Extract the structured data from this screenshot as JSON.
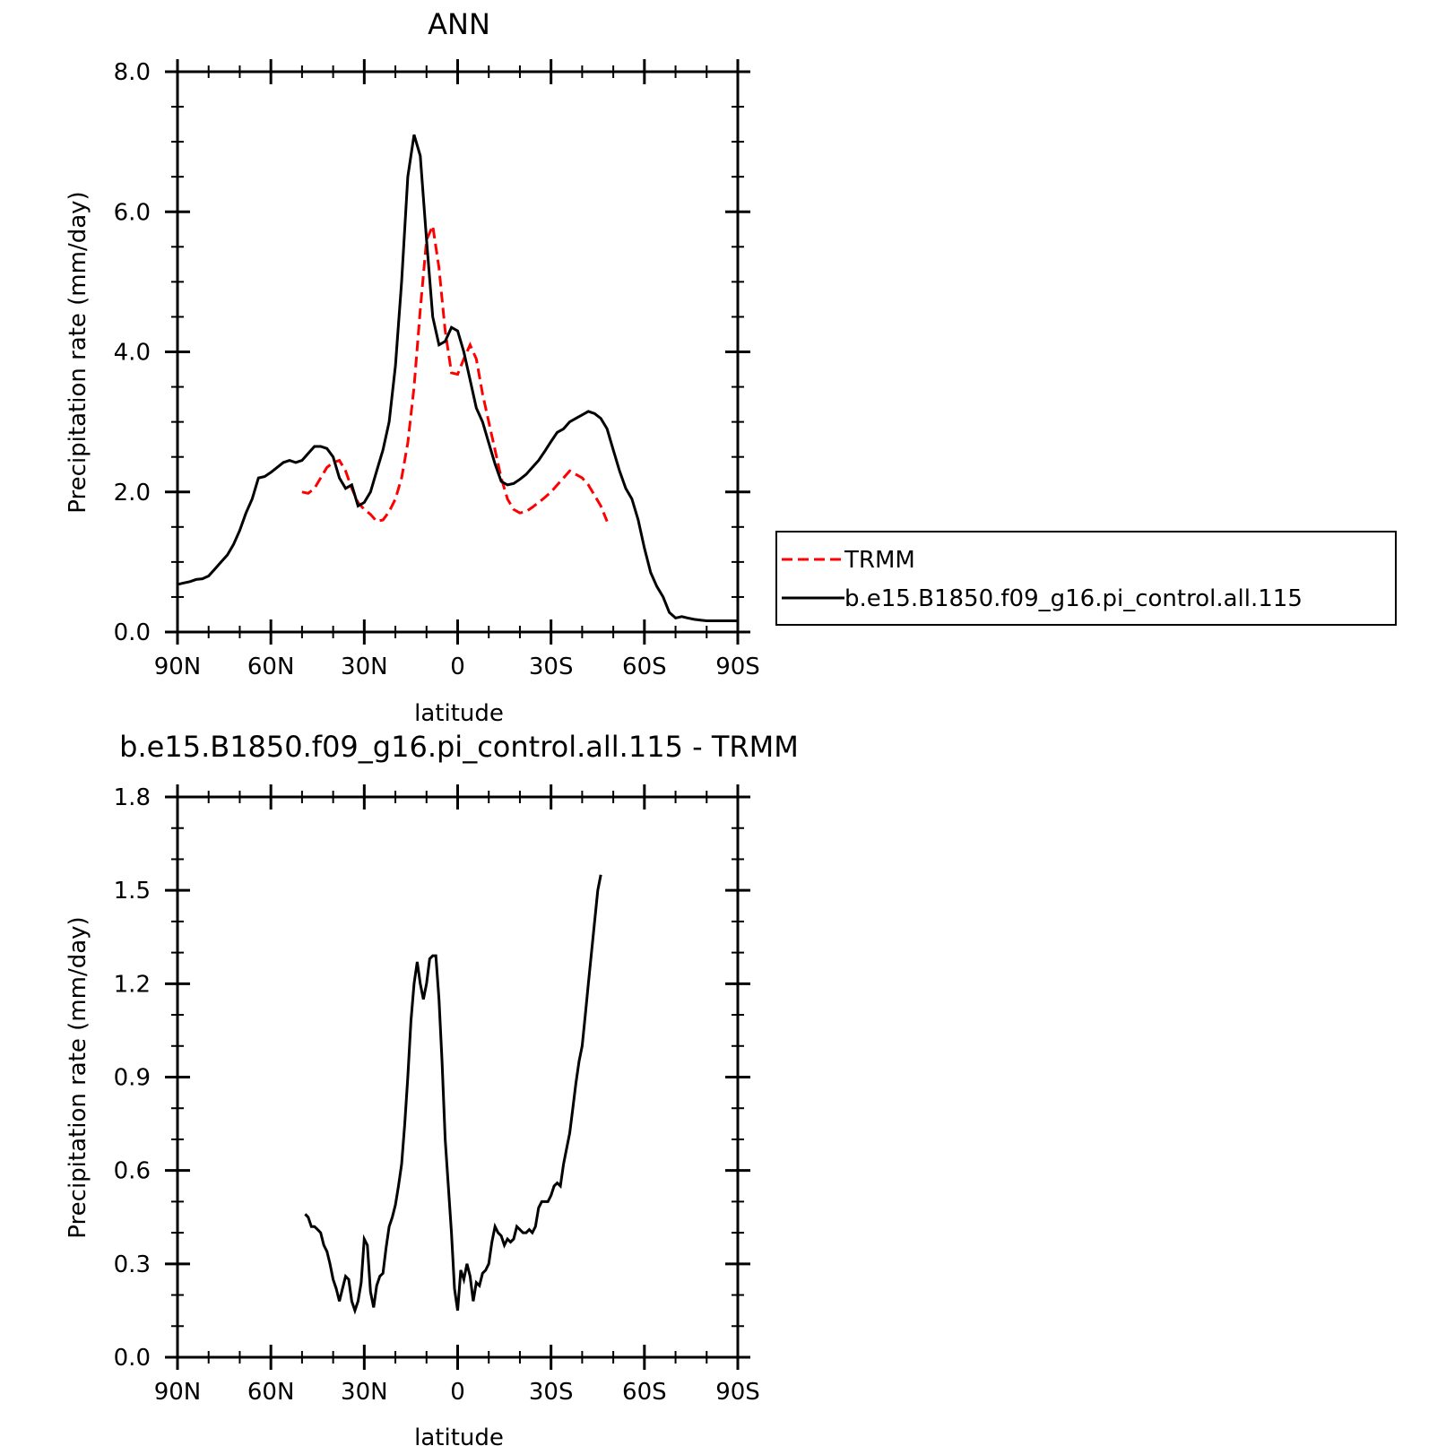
{
  "chart_data": [
    {
      "type": "line",
      "title": "ANN",
      "xlabel": "latitude",
      "ylabel": "Precipitation rate (mm/day)",
      "xlim": [
        90,
        -90
      ],
      "ylim": [
        0,
        8
      ],
      "x_tick_labels": [
        "90N",
        "60N",
        "30N",
        "0",
        "30S",
        "60S",
        "90S"
      ],
      "y_tick_labels": [
        "0.0",
        "2.0",
        "4.0",
        "6.0",
        "8.0"
      ],
      "grid": false,
      "legend_position": "right",
      "series": [
        {
          "name": "TRMM",
          "color": "#ff0000",
          "style": "dashed",
          "x": [
            50,
            48,
            46,
            44,
            42,
            40,
            38,
            36,
            34,
            32,
            30,
            28,
            26,
            24,
            22,
            20,
            18,
            16,
            14,
            12,
            10,
            8,
            6,
            4,
            2,
            0,
            -2,
            -4,
            -6,
            -8,
            -10,
            -12,
            -14,
            -16,
            -18,
            -20,
            -22,
            -24,
            -26,
            -28,
            -30,
            -32,
            -34,
            -36,
            -38,
            -40,
            -42,
            -44,
            -46,
            -48,
            -50
          ],
          "y": [
            2.0,
            1.98,
            2.05,
            2.2,
            2.35,
            2.42,
            2.45,
            2.3,
            2.05,
            1.85,
            1.75,
            1.68,
            1.58,
            1.6,
            1.72,
            1.9,
            2.2,
            2.7,
            3.5,
            4.6,
            5.6,
            5.8,
            5.2,
            4.3,
            3.7,
            3.68,
            3.9,
            4.1,
            3.9,
            3.4,
            3.0,
            2.6,
            2.2,
            1.9,
            1.75,
            1.7,
            1.72,
            1.78,
            1.85,
            1.92,
            2.0,
            2.1,
            2.2,
            2.3,
            2.25,
            2.2,
            2.1,
            1.95,
            1.8,
            1.58,
            null
          ]
        },
        {
          "name": "b.e15.B1850.f09_g16.pi_control.all.115",
          "color": "#000000",
          "style": "solid",
          "x": [
            90,
            88,
            86,
            84,
            82,
            80,
            78,
            76,
            74,
            72,
            70,
            68,
            66,
            64,
            62,
            60,
            58,
            56,
            54,
            52,
            50,
            48,
            46,
            44,
            42,
            40,
            38,
            36,
            34,
            32,
            30,
            28,
            26,
            24,
            22,
            20,
            18,
            16,
            14,
            12,
            10,
            8,
            6,
            4,
            2,
            0,
            -2,
            -4,
            -6,
            -8,
            -10,
            -12,
            -14,
            -16,
            -18,
            -20,
            -22,
            -24,
            -26,
            -28,
            -30,
            -32,
            -34,
            -36,
            -38,
            -40,
            -42,
            -44,
            -46,
            -48,
            -50,
            -52,
            -54,
            -56,
            -58,
            -60,
            -62,
            -64,
            -66,
            -68,
            -70,
            -72,
            -74,
            -76,
            -78,
            -80,
            -82,
            -84,
            -86,
            -88,
            -90
          ],
          "y": [
            0.68,
            0.7,
            0.72,
            0.75,
            0.76,
            0.8,
            0.9,
            1.0,
            1.1,
            1.25,
            1.45,
            1.7,
            1.9,
            2.2,
            2.22,
            2.28,
            2.35,
            2.42,
            2.45,
            2.42,
            2.45,
            2.55,
            2.65,
            2.65,
            2.62,
            2.5,
            2.2,
            2.05,
            2.1,
            1.8,
            1.85,
            2.0,
            2.3,
            2.6,
            3.0,
            3.8,
            5.0,
            6.5,
            7.1,
            6.8,
            5.6,
            4.5,
            4.1,
            4.15,
            4.35,
            4.3,
            4.0,
            3.6,
            3.2,
            3.0,
            2.7,
            2.4,
            2.15,
            2.1,
            2.12,
            2.18,
            2.25,
            2.35,
            2.45,
            2.58,
            2.72,
            2.85,
            2.9,
            3.0,
            3.05,
            3.1,
            3.15,
            3.12,
            3.05,
            2.9,
            2.6,
            2.3,
            2.05,
            1.9,
            1.6,
            1.2,
            0.85,
            0.65,
            0.5,
            0.28,
            0.2,
            0.22,
            0.2,
            0.18,
            0.17,
            0.16,
            0.16,
            0.16,
            0.16,
            0.16,
            0.16
          ]
        }
      ]
    },
    {
      "type": "line",
      "title": "b.e15.B1850.f09_g16.pi_control.all.115 - TRMM",
      "xlabel": "latitude",
      "ylabel": "Precipitation rate (mm/day)",
      "xlim": [
        90,
        -90
      ],
      "ylim": [
        0,
        1.8
      ],
      "x_tick_labels": [
        "90N",
        "60N",
        "30N",
        "0",
        "30S",
        "60S",
        "90S"
      ],
      "y_tick_labels": [
        "0.0",
        "0.3",
        "0.6",
        "0.9",
        "1.2",
        "1.5",
        "1.8"
      ],
      "grid": false,
      "series": [
        {
          "color": "#000000",
          "style": "solid",
          "x": [
            49,
            48,
            47,
            46,
            45,
            44,
            43,
            42,
            41,
            40,
            39,
            38,
            37,
            36,
            35,
            34,
            33,
            32,
            31,
            30,
            29,
            28,
            27,
            26,
            25,
            24,
            23,
            22,
            21,
            20,
            19,
            18,
            17,
            16,
            15,
            14,
            13,
            12,
            11,
            10,
            9,
            8,
            7,
            6,
            5,
            4,
            3,
            2,
            1,
            0,
            -1,
            -2,
            -3,
            -4,
            -5,
            -6,
            -7,
            -8,
            -9,
            -10,
            -11,
            -12,
            -13,
            -14,
            -15,
            -16,
            -17,
            -18,
            -19,
            -20,
            -21,
            -22,
            -23,
            -24,
            -25,
            -26,
            -27,
            -28,
            -29,
            -30,
            -31,
            -32,
            -33,
            -34,
            -35,
            -36,
            -37,
            -38,
            -39,
            -40,
            -41,
            -42,
            -43,
            -44,
            -45,
            -46,
            -47,
            -48,
            -49
          ],
          "y": [
            0.46,
            0.45,
            0.42,
            0.42,
            0.41,
            0.4,
            0.36,
            0.34,
            0.3,
            0.25,
            0.22,
            0.18,
            0.22,
            0.26,
            0.25,
            0.18,
            0.15,
            0.18,
            0.24,
            0.38,
            0.36,
            0.21,
            0.16,
            0.23,
            0.26,
            0.27,
            0.35,
            0.42,
            0.45,
            0.49,
            0.55,
            0.62,
            0.75,
            0.9,
            1.08,
            1.2,
            1.27,
            1.2,
            1.15,
            1.2,
            1.28,
            1.29,
            1.29,
            1.15,
            0.95,
            0.7,
            0.55,
            0.4,
            0.22,
            0.15,
            0.28,
            0.25,
            0.3,
            0.26,
            0.18,
            0.24,
            0.23,
            0.27,
            0.28,
            0.3,
            0.37,
            0.42,
            0.4,
            0.39,
            0.36,
            0.38,
            0.37,
            0.38,
            0.42,
            0.41,
            0.4,
            0.4,
            0.41,
            0.4,
            0.42,
            0.48,
            0.5,
            0.5,
            0.5,
            0.52,
            0.55,
            0.56,
            0.55,
            0.62,
            0.67,
            0.72,
            0.8,
            0.88,
            0.95,
            1.0,
            1.1,
            1.2,
            1.3,
            1.4,
            1.5,
            1.55,
            null,
            null,
            null
          ]
        }
      ]
    }
  ]
}
